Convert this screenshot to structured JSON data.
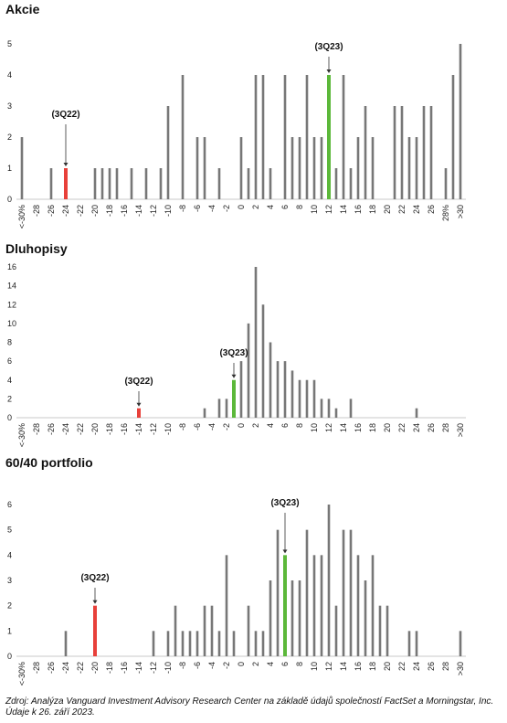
{
  "chart_data": [
    {
      "type": "bar",
      "title": "Akcie",
      "categories": [
        "<-30%",
        "-29",
        "-28",
        "-27",
        "-26",
        "-25",
        "-24",
        "-23",
        "-22",
        "-21",
        "-20",
        "-19",
        "-18",
        "-17",
        "-16",
        "-15",
        "-14",
        "-13",
        "-12",
        "-11",
        "-10",
        "-9",
        "-8",
        "-7",
        "-6",
        "-5",
        "-4",
        "-3",
        "-2",
        "-1",
        "0",
        "1",
        "2",
        "3",
        "4",
        "5",
        "6",
        "7",
        "8",
        "9",
        "10",
        "11",
        "12",
        "13",
        "14",
        "15",
        "16",
        "17",
        "18",
        "19",
        "20",
        "21",
        "22",
        "23",
        "24",
        "25",
        "26",
        "27",
        "28%",
        "29",
        ">30"
      ],
      "tick_labels": [
        "<-30%",
        "-28",
        "-26",
        "-24",
        "-22",
        "-20",
        "-18",
        "-16",
        "-14",
        "-12",
        "-10",
        "-8",
        "-6",
        "-4",
        "-2",
        "0",
        "2",
        "4",
        "6",
        "8",
        "10",
        "12",
        "14",
        "16",
        "18",
        "20",
        "22",
        "24",
        "26",
        "28%",
        ">30"
      ],
      "values": [
        2,
        0,
        0,
        0,
        1,
        0,
        1,
        0,
        0,
        0,
        1,
        1,
        1,
        1,
        0,
        1,
        0,
        1,
        0,
        1,
        3,
        0,
        4,
        0,
        2,
        2,
        0,
        1,
        0,
        0,
        2,
        1,
        4,
        4,
        1,
        0,
        4,
        2,
        2,
        4,
        2,
        2,
        4,
        1,
        4,
        1,
        2,
        3,
        2,
        0,
        0,
        3,
        3,
        2,
        2,
        3,
        3,
        0,
        1,
        4,
        5
      ],
      "ylim": [
        0,
        5
      ],
      "yticks": [
        0,
        1,
        2,
        3,
        4,
        5
      ],
      "highlights": [
        {
          "label": "(3Q22)",
          "category": "-24",
          "color": "#e8403a"
        },
        {
          "label": "(3Q23)",
          "category": "12",
          "color": "#5cb83a"
        }
      ],
      "bar_color": "#777777"
    },
    {
      "type": "bar",
      "title": "Dluhopisy",
      "categories": [
        "<-30%",
        "-29",
        "-28",
        "-27",
        "-26",
        "-25",
        "-24",
        "-23",
        "-22",
        "-21",
        "-20",
        "-19",
        "-18",
        "-17",
        "-16",
        "-15",
        "-14",
        "-13",
        "-12",
        "-11",
        "-10",
        "-9",
        "-8",
        "-7",
        "-6",
        "-5",
        "-4",
        "-3",
        "-2",
        "-1",
        "0",
        "1",
        "2",
        "3",
        "4",
        "5",
        "6",
        "7",
        "8",
        "9",
        "10",
        "11",
        "12",
        "13",
        "14",
        "15",
        "16",
        "17",
        "18",
        "19",
        "20",
        "21",
        "22",
        "23",
        "24",
        "25",
        "26",
        "27",
        "28",
        "29",
        ">30"
      ],
      "tick_labels": [
        "<-30%",
        "-28",
        "-26",
        "-24",
        "-22",
        "-20",
        "-18",
        "-16",
        "-14",
        "-12",
        "-10",
        "-8",
        "-6",
        "-4",
        "-2",
        "0",
        "2",
        "4",
        "6",
        "8",
        "10",
        "12",
        "14",
        "16",
        "18",
        "20",
        "22",
        "24",
        "26",
        "28",
        ">30"
      ],
      "values": [
        0,
        0,
        0,
        0,
        0,
        0,
        0,
        0,
        0,
        0,
        0,
        0,
        0,
        0,
        0,
        0,
        1,
        0,
        0,
        0,
        0,
        0,
        0,
        0,
        0,
        1,
        0,
        2,
        2,
        4,
        6,
        10,
        16,
        12,
        8,
        6,
        6,
        5,
        4,
        4,
        4,
        2,
        2,
        1,
        0,
        2,
        0,
        0,
        0,
        0,
        0,
        0,
        0,
        0,
        1,
        0,
        0,
        0,
        0,
        0,
        0
      ],
      "ylim": [
        0,
        16
      ],
      "yticks": [
        0,
        2,
        4,
        6,
        8,
        10,
        12,
        14,
        16
      ],
      "highlights": [
        {
          "label": "(3Q22)",
          "category": "-14",
          "color": "#e8403a"
        },
        {
          "label": "(3Q23)",
          "category": "-1",
          "color": "#5cb83a"
        }
      ],
      "bar_color": "#777777"
    },
    {
      "type": "bar",
      "title": "60/40 portfolio",
      "categories": [
        "<-30%",
        "-29",
        "-28",
        "-27",
        "-26",
        "-25",
        "-24",
        "-23",
        "-22",
        "-21",
        "-20",
        "-19",
        "-18",
        "-17",
        "-16",
        "-15",
        "-14",
        "-13",
        "-12",
        "-11",
        "-10",
        "-9",
        "-8",
        "-7",
        "-6",
        "-5",
        "-4",
        "-3",
        "-2",
        "-1",
        "0",
        "1",
        "2",
        "3",
        "4",
        "5",
        "6",
        "7",
        "8",
        "9",
        "10",
        "11",
        "12",
        "13",
        "14",
        "15",
        "16",
        "17",
        "18",
        "19",
        "20",
        "21",
        "22",
        "23",
        "24",
        "25",
        "26",
        "27",
        "28",
        "29",
        ">30"
      ],
      "tick_labels": [
        "<-30%",
        "-28",
        "-26",
        "-24",
        "-22",
        "-20",
        "-18",
        "-16",
        "-14",
        "-12",
        "-10",
        "-8",
        "-6",
        "-4",
        "-2",
        "0",
        "2",
        "4",
        "6",
        "8",
        "10",
        "12",
        "14",
        "16",
        "18",
        "20",
        "22",
        "24",
        "26",
        "28",
        ">30"
      ],
      "values": [
        0,
        0,
        0,
        0,
        0,
        0,
        1,
        0,
        0,
        0,
        2,
        0,
        0,
        0,
        0,
        0,
        0,
        0,
        1,
        0,
        1,
        2,
        1,
        1,
        1,
        2,
        2,
        1,
        4,
        1,
        0,
        2,
        1,
        1,
        3,
        5,
        4,
        3,
        3,
        5,
        4,
        4,
        6,
        2,
        5,
        5,
        4,
        3,
        4,
        2,
        2,
        0,
        0,
        1,
        1,
        0,
        0,
        0,
        0,
        0,
        1
      ],
      "ylim": [
        0,
        6
      ],
      "yticks": [
        0,
        1,
        2,
        3,
        4,
        5,
        6
      ],
      "highlights": [
        {
          "label": "(3Q22)",
          "category": "-20",
          "color": "#e8403a"
        },
        {
          "label": "(3Q23)",
          "category": "6",
          "color": "#5cb83a"
        }
      ],
      "bar_color": "#777777"
    }
  ],
  "source": "Zdroj: Analýza Vanguard Investment Advisory Research Center na základě údajů společností FactSet a Morningstar, Inc. Údaje k 26. září 2023."
}
